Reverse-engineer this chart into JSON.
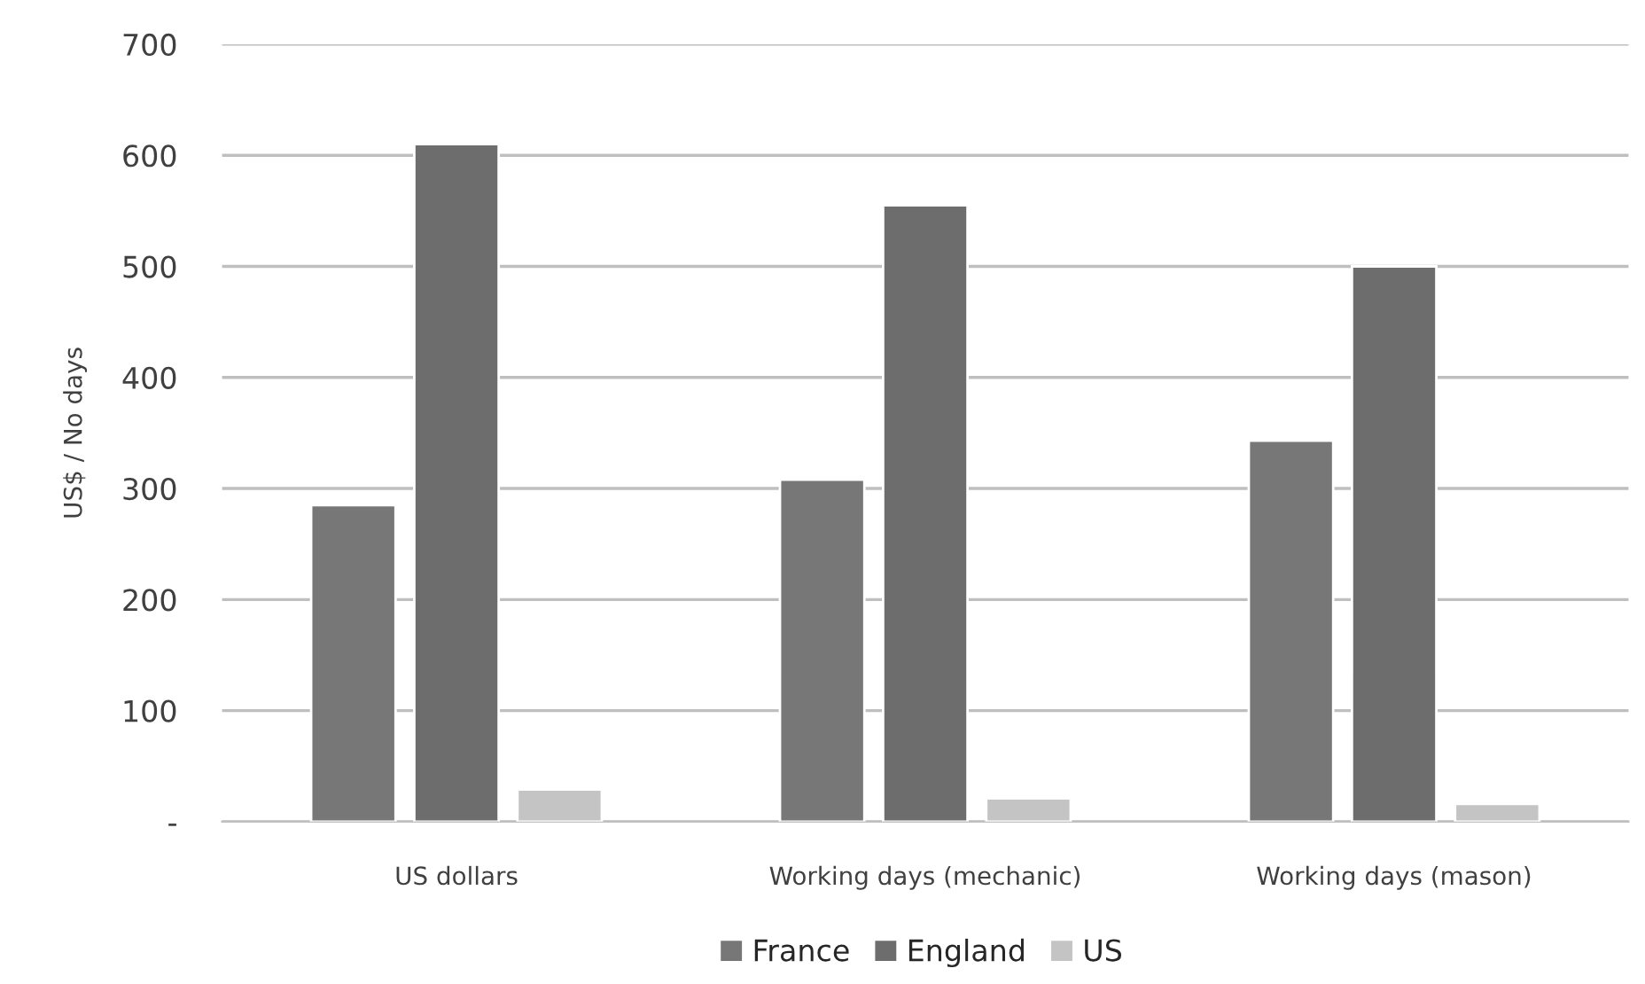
{
  "chart_data": {
    "type": "bar",
    "ylabel": "US$ / No days",
    "categories": [
      "US dollars",
      "Working days (mechanic)",
      "Working days (mason)"
    ],
    "series": [
      {
        "name": "France",
        "color": "#777777",
        "values": [
          285,
          308,
          343
        ]
      },
      {
        "name": "England",
        "color": "#6d6d6d",
        "values": [
          610,
          555,
          500
        ]
      },
      {
        "name": "US",
        "color": "#c4c4c4",
        "values": [
          29,
          21,
          16
        ]
      }
    ],
    "ylim": [
      0,
      700
    ],
    "yticks": [
      {
        "value": 0,
        "label": "-"
      },
      100,
      200,
      300,
      400,
      500,
      600,
      700
    ],
    "grid": "y",
    "legend": "bottom"
  }
}
